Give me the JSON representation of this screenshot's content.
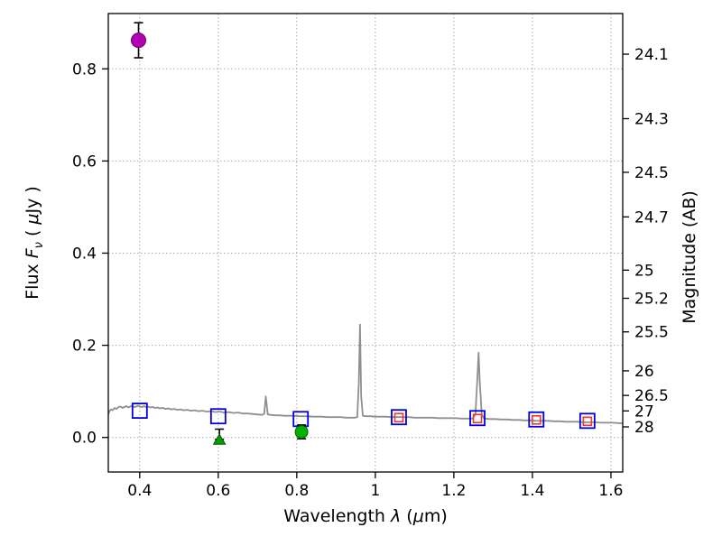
{
  "page": {
    "background": "#ffffff"
  },
  "chart_data": {
    "type": "line",
    "title": "",
    "xlabel": "Wavelength λ (μm)",
    "ylabel_left": "Flux Fν ( μJy )",
    "ylabel_right": "Magnitude (AB)",
    "xlabel_parts": [
      {
        "t": "Wavelength  "
      },
      {
        "t": "λ",
        "style": "italic"
      },
      {
        "t": " ("
      },
      {
        "t": "μ",
        "style": "italic"
      },
      {
        "t": "m)"
      }
    ],
    "ylabel_left_parts": [
      {
        "t": "Flux  "
      },
      {
        "t": "F",
        "style": "italic"
      },
      {
        "t": "ν",
        "style": "italic-sub"
      },
      {
        "t": "  ( "
      },
      {
        "t": "μ",
        "style": "italic"
      },
      {
        "t": "Jy )"
      }
    ],
    "xlim": [
      0.32,
      1.63
    ],
    "ylim": [
      -0.075,
      0.92
    ],
    "xticks": [
      0.4,
      0.6,
      0.8,
      1.0,
      1.2,
      1.4,
      1.6
    ],
    "xtick_labels": [
      "0.4",
      "0.6",
      "0.8",
      "1",
      "1.2",
      "1.4",
      "1.6"
    ],
    "yticks_left": [
      0.0,
      0.2,
      0.4,
      0.6,
      0.8
    ],
    "ytick_left_labels": [
      "0.0",
      "0.2",
      "0.4",
      "0.6",
      "0.8"
    ],
    "mag_ticks": [
      24.1,
      24.3,
      24.5,
      24.7,
      25,
      25.2,
      25.5,
      26,
      26.5,
      27,
      28
    ],
    "mag_tick_labels": [
      "24.1",
      "24.3",
      "24.5",
      "24.7",
      "25",
      "25.2",
      "25.5",
      "26",
      "26.5",
      "27",
      "28"
    ],
    "ab_zeropoint": 23.9,
    "grid": {
      "on": true,
      "style": "dotted",
      "color": "#aaaaaa"
    },
    "colors": {
      "spectrum": "#8f8f8f",
      "model_square": "#0000dd",
      "observed_square": "#ee3333",
      "magenta_point": "#b400b4",
      "green_point": "#00b200",
      "green_triangle": "#00a000",
      "errorbar": "#000000",
      "frame": "#000000"
    },
    "series": {
      "spectrum": {
        "name": "model-spectrum",
        "points": [
          [
            0.315,
            0.038
          ],
          [
            0.319,
            0.048
          ],
          [
            0.323,
            0.057
          ],
          [
            0.327,
            0.061
          ],
          [
            0.331,
            0.059
          ],
          [
            0.336,
            0.064
          ],
          [
            0.341,
            0.062
          ],
          [
            0.346,
            0.066
          ],
          [
            0.351,
            0.067
          ],
          [
            0.356,
            0.064
          ],
          [
            0.361,
            0.066
          ],
          [
            0.366,
            0.068
          ],
          [
            0.371,
            0.065
          ],
          [
            0.376,
            0.067
          ],
          [
            0.381,
            0.069
          ],
          [
            0.386,
            0.066
          ],
          [
            0.391,
            0.067
          ],
          [
            0.396,
            0.069
          ],
          [
            0.401,
            0.067
          ],
          [
            0.406,
            0.066
          ],
          [
            0.411,
            0.068
          ],
          [
            0.416,
            0.066
          ],
          [
            0.421,
            0.067
          ],
          [
            0.427,
            0.065
          ],
          [
            0.433,
            0.066
          ],
          [
            0.439,
            0.064
          ],
          [
            0.445,
            0.065
          ],
          [
            0.452,
            0.063
          ],
          [
            0.459,
            0.064
          ],
          [
            0.466,
            0.062
          ],
          [
            0.473,
            0.063
          ],
          [
            0.48,
            0.061
          ],
          [
            0.488,
            0.062
          ],
          [
            0.496,
            0.06
          ],
          [
            0.504,
            0.061
          ],
          [
            0.512,
            0.059
          ],
          [
            0.521,
            0.06
          ],
          [
            0.53,
            0.058
          ],
          [
            0.54,
            0.059
          ],
          [
            0.55,
            0.057
          ],
          [
            0.56,
            0.058
          ],
          [
            0.571,
            0.056
          ],
          [
            0.582,
            0.057
          ],
          [
            0.593,
            0.055
          ],
          [
            0.604,
            0.056
          ],
          [
            0.615,
            0.054
          ],
          [
            0.627,
            0.055
          ],
          [
            0.639,
            0.053
          ],
          [
            0.651,
            0.054
          ],
          [
            0.663,
            0.052
          ],
          [
            0.675,
            0.052
          ],
          [
            0.687,
            0.051
          ],
          [
            0.699,
            0.05
          ],
          [
            0.711,
            0.049
          ],
          [
            0.717,
            0.051
          ],
          [
            0.721,
            0.089
          ],
          [
            0.726,
            0.05
          ],
          [
            0.734,
            0.049
          ],
          [
            0.744,
            0.048
          ],
          [
            0.756,
            0.048
          ],
          [
            0.768,
            0.047
          ],
          [
            0.78,
            0.047
          ],
          [
            0.792,
            0.047
          ],
          [
            0.804,
            0.046
          ],
          [
            0.816,
            0.046
          ],
          [
            0.828,
            0.046
          ],
          [
            0.84,
            0.045
          ],
          [
            0.852,
            0.045
          ],
          [
            0.864,
            0.045
          ],
          [
            0.876,
            0.044
          ],
          [
            0.888,
            0.044
          ],
          [
            0.9,
            0.044
          ],
          [
            0.912,
            0.044
          ],
          [
            0.924,
            0.043
          ],
          [
            0.936,
            0.043
          ],
          [
            0.948,
            0.043
          ],
          [
            0.954,
            0.044
          ],
          [
            0.958,
            0.12
          ],
          [
            0.961,
            0.245
          ],
          [
            0.964,
            0.09
          ],
          [
            0.968,
            0.047
          ],
          [
            0.976,
            0.046
          ],
          [
            0.988,
            0.046
          ],
          [
            1.0,
            0.045
          ],
          [
            1.012,
            0.045
          ],
          [
            1.026,
            0.045
          ],
          [
            1.04,
            0.044
          ],
          [
            1.055,
            0.044
          ],
          [
            1.07,
            0.044
          ],
          [
            1.085,
            0.044
          ],
          [
            1.1,
            0.043
          ],
          [
            1.115,
            0.043
          ],
          [
            1.13,
            0.043
          ],
          [
            1.145,
            0.043
          ],
          [
            1.16,
            0.042
          ],
          [
            1.175,
            0.042
          ],
          [
            1.19,
            0.042
          ],
          [
            1.205,
            0.042
          ],
          [
            1.22,
            0.041
          ],
          [
            1.235,
            0.041
          ],
          [
            1.248,
            0.041
          ],
          [
            1.255,
            0.05
          ],
          [
            1.26,
            0.13
          ],
          [
            1.263,
            0.184
          ],
          [
            1.266,
            0.12
          ],
          [
            1.271,
            0.05
          ],
          [
            1.277,
            0.041
          ],
          [
            1.29,
            0.04
          ],
          [
            1.305,
            0.04
          ],
          [
            1.32,
            0.039
          ],
          [
            1.335,
            0.039
          ],
          [
            1.35,
            0.038
          ],
          [
            1.365,
            0.038
          ],
          [
            1.38,
            0.037
          ],
          [
            1.395,
            0.037
          ],
          [
            1.41,
            0.036
          ],
          [
            1.425,
            0.036
          ],
          [
            1.44,
            0.036
          ],
          [
            1.455,
            0.035
          ],
          [
            1.47,
            0.035
          ],
          [
            1.485,
            0.034
          ],
          [
            1.5,
            0.034
          ],
          [
            1.515,
            0.034
          ],
          [
            1.53,
            0.033
          ],
          [
            1.545,
            0.033
          ],
          [
            1.56,
            0.033
          ],
          [
            1.575,
            0.032
          ],
          [
            1.59,
            0.032
          ],
          [
            1.605,
            0.032
          ],
          [
            1.62,
            0.031
          ],
          [
            1.63,
            0.031
          ]
        ]
      },
      "model_photometry": {
        "name": "model-photometry-open-blue-squares",
        "marker": "open-square",
        "x": [
          0.4,
          0.6,
          0.81,
          1.06,
          1.26,
          1.41,
          1.54
        ],
        "y": [
          0.058,
          0.046,
          0.04,
          0.044,
          0.042,
          0.039,
          0.036
        ]
      },
      "observed_photometry": {
        "name": "observed-photometry-open-red-squares",
        "marker": "open-square-small",
        "x": [
          1.06,
          1.26,
          1.41,
          1.54
        ],
        "y": [
          0.043,
          0.041,
          0.038,
          0.035
        ]
      },
      "detections": [
        {
          "name": "magenta-detection",
          "marker": "circle",
          "color": "#b400b4",
          "edge": "#6a006a",
          "r": 8,
          "x": 0.397,
          "y": 0.862,
          "yerr": 0.038
        },
        {
          "name": "green-detection",
          "marker": "circle",
          "color": "#00b200",
          "edge": "#006600",
          "r": 7,
          "x": 0.812,
          "y": 0.012,
          "yerr": 0.015
        },
        {
          "name": "green-upper-limit",
          "marker": "triangle-up",
          "color": "#00a000",
          "edge": "#005500",
          "x": 0.603,
          "y": -0.005,
          "err_center": 0.007,
          "yerr": 0.011
        }
      ]
    }
  }
}
